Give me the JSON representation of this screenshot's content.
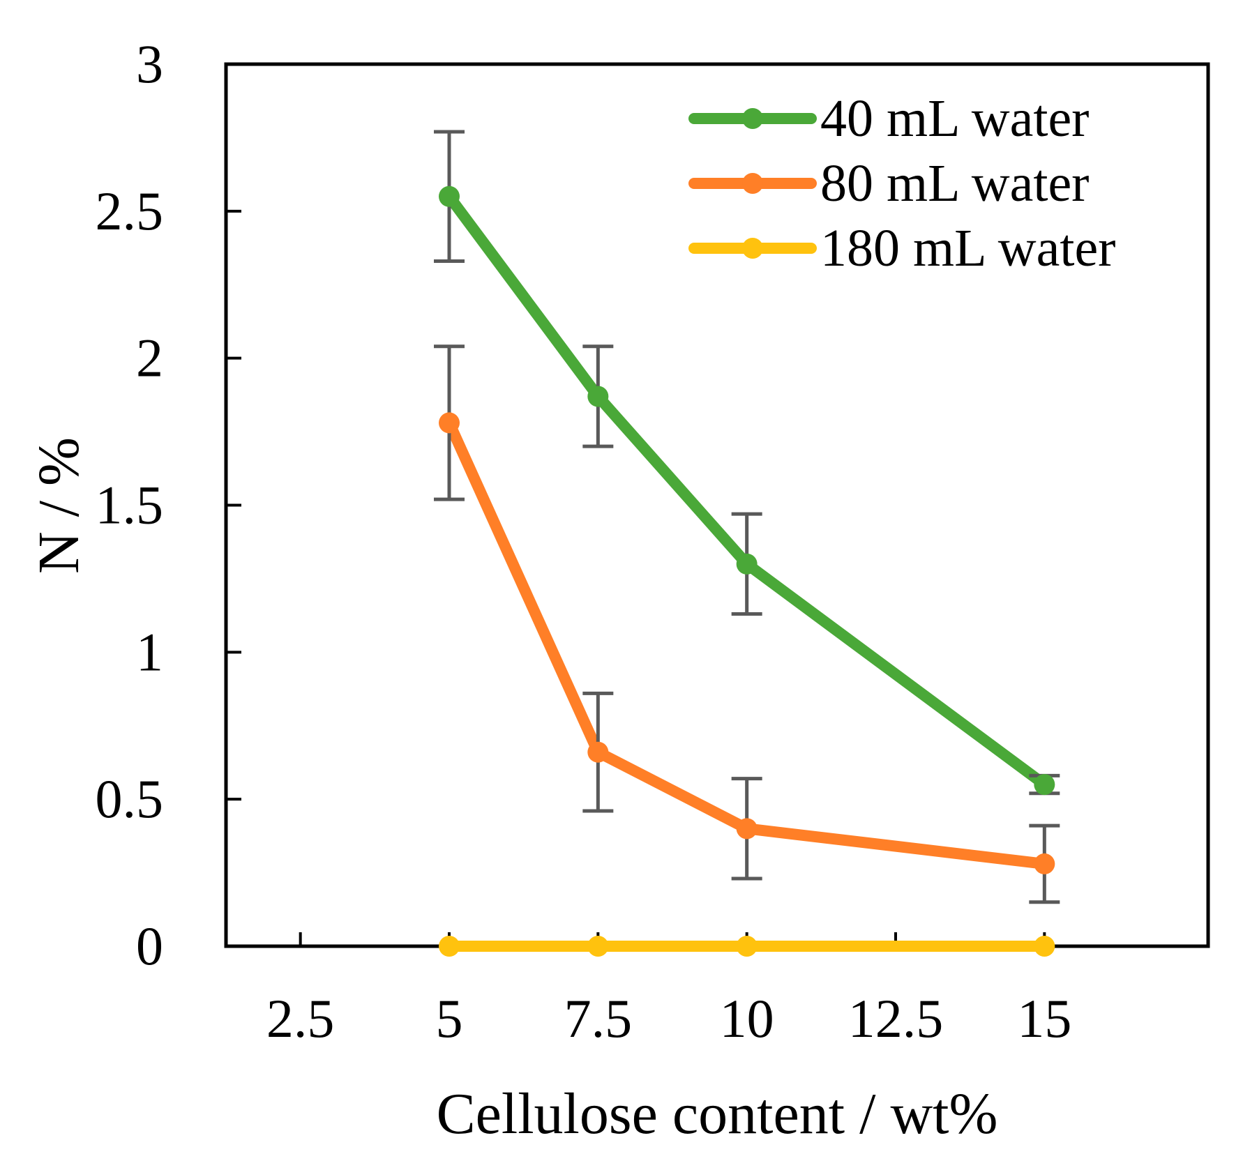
{
  "chart_data": {
    "type": "line",
    "title": "",
    "xlabel": "Cellulose content / wt%",
    "ylabel": "N / %",
    "xlim": [
      1.25,
      17.75
    ],
    "ylim": [
      0,
      3
    ],
    "x_ticks": [
      2.5,
      5,
      7.5,
      10,
      12.5,
      15
    ],
    "x_tick_labels": [
      "2.5",
      "5",
      "7.5",
      "10",
      "12.5",
      "15"
    ],
    "y_ticks": [
      0,
      0.5,
      1,
      1.5,
      2,
      2.5,
      3
    ],
    "y_tick_labels": [
      "0",
      "0.5",
      "1",
      "1.5",
      "2",
      "2.5",
      "3"
    ],
    "grid": false,
    "legend_position": "top-right",
    "x": [
      5,
      7.5,
      10,
      15
    ],
    "series": [
      {
        "name": "40 mL water",
        "color": "#4aa838",
        "values": [
          2.55,
          1.87,
          1.3,
          0.55
        ],
        "error": [
          0.22,
          0.17,
          0.17,
          0.03
        ]
      },
      {
        "name": "80 mL water",
        "color": "#ff7f27",
        "values": [
          1.78,
          0.66,
          0.4,
          0.28
        ],
        "error": [
          0.26,
          0.2,
          0.17,
          0.13
        ]
      },
      {
        "name": "180 mL water",
        "color": "#ffc20e",
        "values": [
          0,
          0,
          0,
          0
        ],
        "error": null
      }
    ],
    "error_bar_color": "#595959"
  }
}
